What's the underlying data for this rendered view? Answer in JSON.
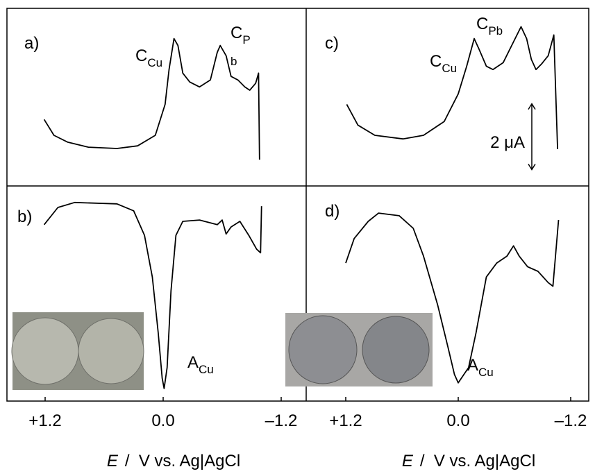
{
  "chart_data": [
    {
      "type": "line",
      "panel_label": "a)",
      "color": "#000000",
      "annotations": [
        {
          "text": "C",
          "sub": "Cu"
        },
        {
          "text": "C",
          "sub": "P"
        },
        {
          "text": "b"
        }
      ],
      "xlim": [
        1.2,
        -1.2
      ],
      "ylim": [
        0,
        5.4
      ],
      "x": [
        1.21,
        1.11,
        0.97,
        0.76,
        0.47,
        0.26,
        0.08,
        -0.02,
        -0.06,
        -0.11,
        -0.15,
        -0.2,
        -0.27,
        -0.37,
        -0.48,
        -0.55,
        -0.58,
        -0.64,
        -0.69,
        -0.76,
        -0.83,
        -0.88,
        -0.94,
        -0.97,
        -0.98
      ],
      "values": [
        2.02,
        1.54,
        1.33,
        1.18,
        1.14,
        1.22,
        1.54,
        2.48,
        3.54,
        4.48,
        4.27,
        3.43,
        3.16,
        3.01,
        3.22,
        4.06,
        4.27,
        3.96,
        3.33,
        3.22,
        3.01,
        2.91,
        3.12,
        3.43,
        0.8
      ]
    },
    {
      "type": "line",
      "panel_label": "b)",
      "color": "#000000",
      "annotations": [
        {
          "text": "A",
          "sub": "Cu"
        }
      ],
      "xlim": [
        1.2,
        -1.2
      ],
      "ylim": [
        0,
        6.5
      ],
      "xticks": [
        {
          "value": 1.2,
          "label": "+1.2"
        },
        {
          "value": 0,
          "label": "0.0"
        },
        {
          "value": -1.2,
          "label": "–1.2"
        }
      ],
      "x_label": {
        "symbol": "E",
        "unit": "/  V vs. Ag|AgCl"
      },
      "x": [
        1.21,
        1.07,
        0.9,
        0.47,
        0.3,
        0.19,
        0.11,
        0.05,
        0.01,
        -0.01,
        -0.04,
        -0.08,
        -0.13,
        -0.2,
        -0.37,
        -0.55,
        -0.6,
        -0.64,
        -0.69,
        -0.78,
        -0.87,
        -0.95,
        -0.99,
        -1.0
      ],
      "values": [
        5.33,
        5.85,
        6.0,
        5.96,
        5.75,
        5.01,
        3.75,
        2.06,
        0.69,
        0.38,
        1.01,
        3.33,
        5.01,
        5.43,
        5.47,
        5.33,
        5.47,
        5.05,
        5.26,
        5.43,
        5.01,
        4.59,
        4.48,
        5.89
      ]
    },
    {
      "type": "line",
      "panel_label": "c)",
      "color": "#000000",
      "annotations": [
        {
          "text": "C",
          "sub": "Pb"
        },
        {
          "text": "C",
          "sub": "Cu"
        }
      ],
      "scale_bar": {
        "value": 2,
        "label": "2 μA"
      },
      "xlim": [
        1.2,
        -1.2
      ],
      "ylim": [
        0,
        5.4
      ],
      "x": [
        1.19,
        1.07,
        0.89,
        0.59,
        0.37,
        0.15,
        0,
        -0.09,
        -0.17,
        -0.22,
        -0.3,
        -0.37,
        -0.48,
        -0.59,
        -0.67,
        -0.73,
        -0.78,
        -0.83,
        -0.89,
        -0.96,
        -1.02,
        -1.06
      ],
      "values": [
        2.48,
        1.85,
        1.54,
        1.43,
        1.54,
        1.96,
        2.8,
        3.64,
        4.48,
        4.17,
        3.64,
        3.54,
        3.75,
        4.38,
        4.84,
        4.48,
        3.85,
        3.54,
        3.71,
        3.96,
        4.59,
        1.12
      ]
    },
    {
      "type": "line",
      "panel_label": "d)",
      "color": "#000000",
      "annotations": [
        {
          "text": "A",
          "sub": "Cu"
        }
      ],
      "xlim": [
        1.2,
        -1.2
      ],
      "ylim": [
        0,
        6.5
      ],
      "xticks": [
        {
          "value": 1.2,
          "label": "+1.2"
        },
        {
          "value": 0,
          "label": "0.0"
        },
        {
          "value": -1.2,
          "label": "–1.2"
        }
      ],
      "x_label": {
        "symbol": "E",
        "unit": "/  V vs. Ag|AgCl"
      },
      "x": [
        1.2,
        1.11,
        0.96,
        0.85,
        0.63,
        0.48,
        0.37,
        0.22,
        0.11,
        0.04,
        0,
        -0.06,
        -0.11,
        -0.19,
        -0.3,
        -0.41,
        -0.52,
        -0.59,
        -0.65,
        -0.74,
        -0.85,
        -0.96,
        -1.01,
        -1.07
      ],
      "values": [
        4.17,
        4.91,
        5.43,
        5.68,
        5.6,
        5.22,
        4.38,
        2.91,
        1.64,
        0.8,
        0.55,
        0.8,
        1.01,
        2.06,
        3.75,
        4.17,
        4.38,
        4.69,
        4.38,
        4.06,
        3.92,
        3.58,
        3.47,
        5.47
      ]
    }
  ]
}
